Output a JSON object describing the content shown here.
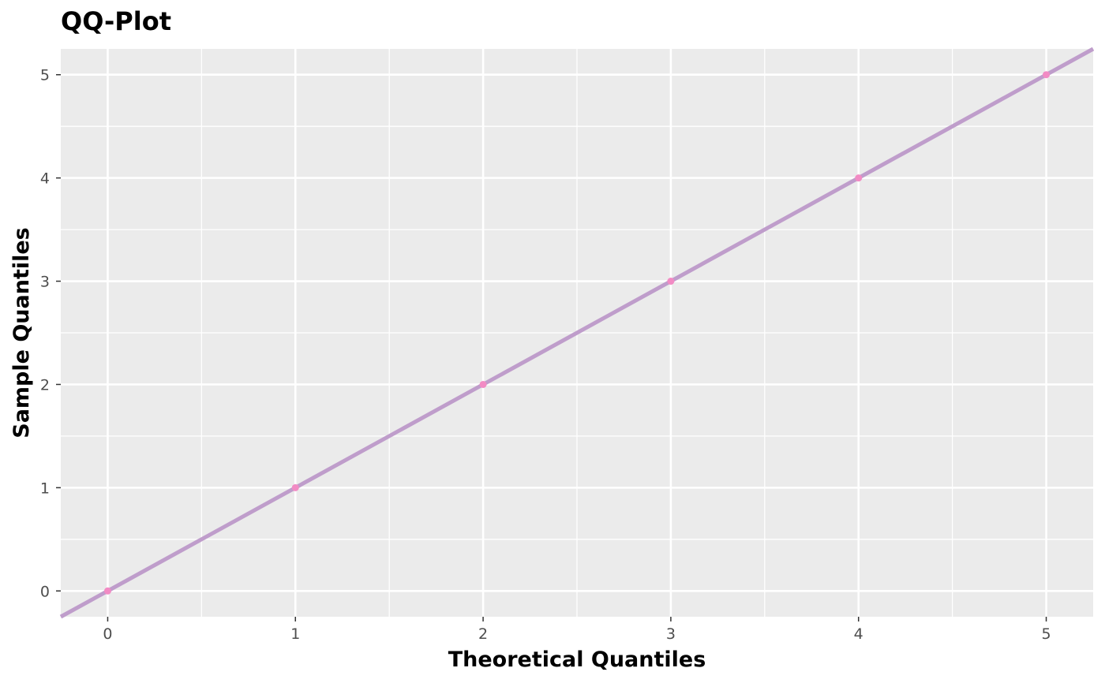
{
  "chart_data": {
    "type": "scatter",
    "title": "QQ-Plot",
    "xlabel": "Theoretical Quantiles",
    "ylabel": "Sample Quantiles",
    "xlim": [
      -0.25,
      5.25
    ],
    "ylim": [
      -0.25,
      5.25
    ],
    "x_ticks": [
      0,
      1,
      2,
      3,
      4,
      5
    ],
    "y_ticks": [
      0,
      1,
      2,
      3,
      4,
      5
    ],
    "grid": true,
    "series": [
      {
        "name": "sample",
        "x": [
          0,
          1,
          2,
          3,
          4,
          5
        ],
        "y": [
          0,
          1,
          2,
          3,
          4,
          5
        ],
        "color": "#f28bc4"
      }
    ],
    "reference_line": {
      "slope": 1,
      "intercept": 0,
      "color": "#bf9dcb"
    },
    "panel_background": "#ebebeb",
    "grid_color": "#ffffff"
  }
}
